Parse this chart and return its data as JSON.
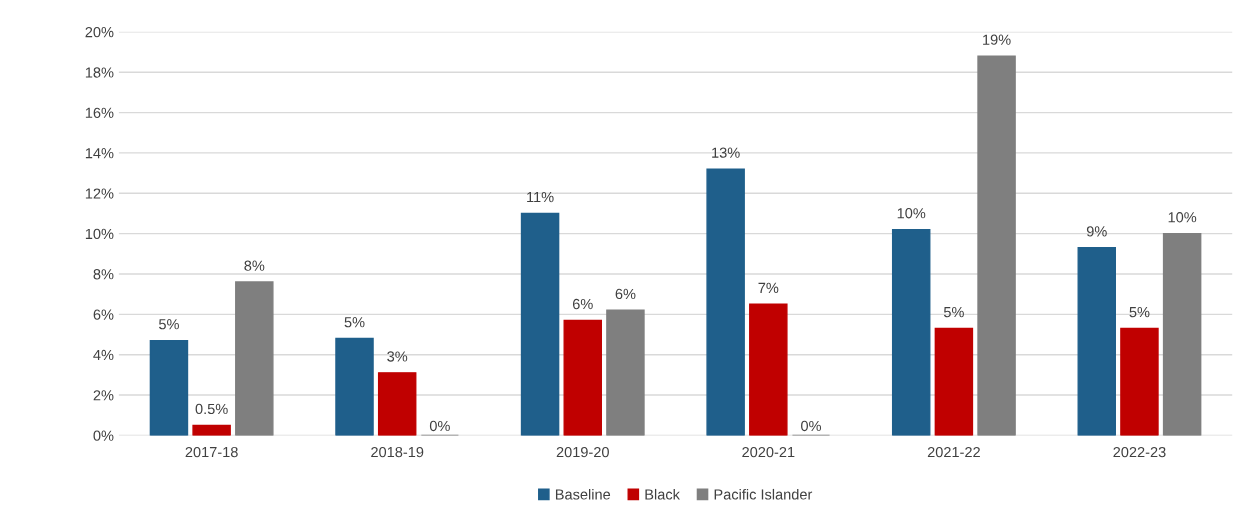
{
  "chart_data": {
    "type": "bar",
    "categories": [
      "2017-18",
      "2018-19",
      "2019-20",
      "2020-21",
      "2021-22",
      "2022-23"
    ],
    "series": [
      {
        "name": "Baseline",
        "color": "#1f5f8b",
        "values": [
          4.7,
          4.8,
          11.0,
          13.2,
          10.2,
          9.3
        ],
        "value_labels": [
          "5%",
          "5%",
          "11%",
          "13%",
          "10%",
          "9%"
        ]
      },
      {
        "name": "Black",
        "color": "#c00000",
        "values": [
          0.5,
          3.1,
          5.7,
          6.5,
          5.3,
          5.3
        ],
        "value_labels": [
          "0.5%",
          "3%",
          "6%",
          "7%",
          "5%",
          "5%"
        ]
      },
      {
        "name": "Pacific Islander",
        "color": "#7f7f7f",
        "values": [
          7.6,
          0,
          6.2,
          0,
          18.8,
          10.0
        ],
        "value_labels": [
          "8%",
          "0%",
          "6%",
          "0%",
          "19%",
          "10%"
        ]
      }
    ],
    "ylim": [
      0,
      20
    ],
    "yticks": [
      {
        "value": 0,
        "label": "0%"
      },
      {
        "value": 2,
        "label": "2%"
      },
      {
        "value": 4,
        "label": "4%"
      },
      {
        "value": 6,
        "label": "6%"
      },
      {
        "value": 8,
        "label": "8%"
      },
      {
        "value": 10,
        "label": "10%"
      },
      {
        "value": 12,
        "label": "12%"
      },
      {
        "value": 14,
        "label": "14%"
      },
      {
        "value": 16,
        "label": "16%"
      },
      {
        "value": 18,
        "label": "18%"
      },
      {
        "value": 20,
        "label": "20%"
      }
    ],
    "grid": "y",
    "legend": "bottom"
  }
}
